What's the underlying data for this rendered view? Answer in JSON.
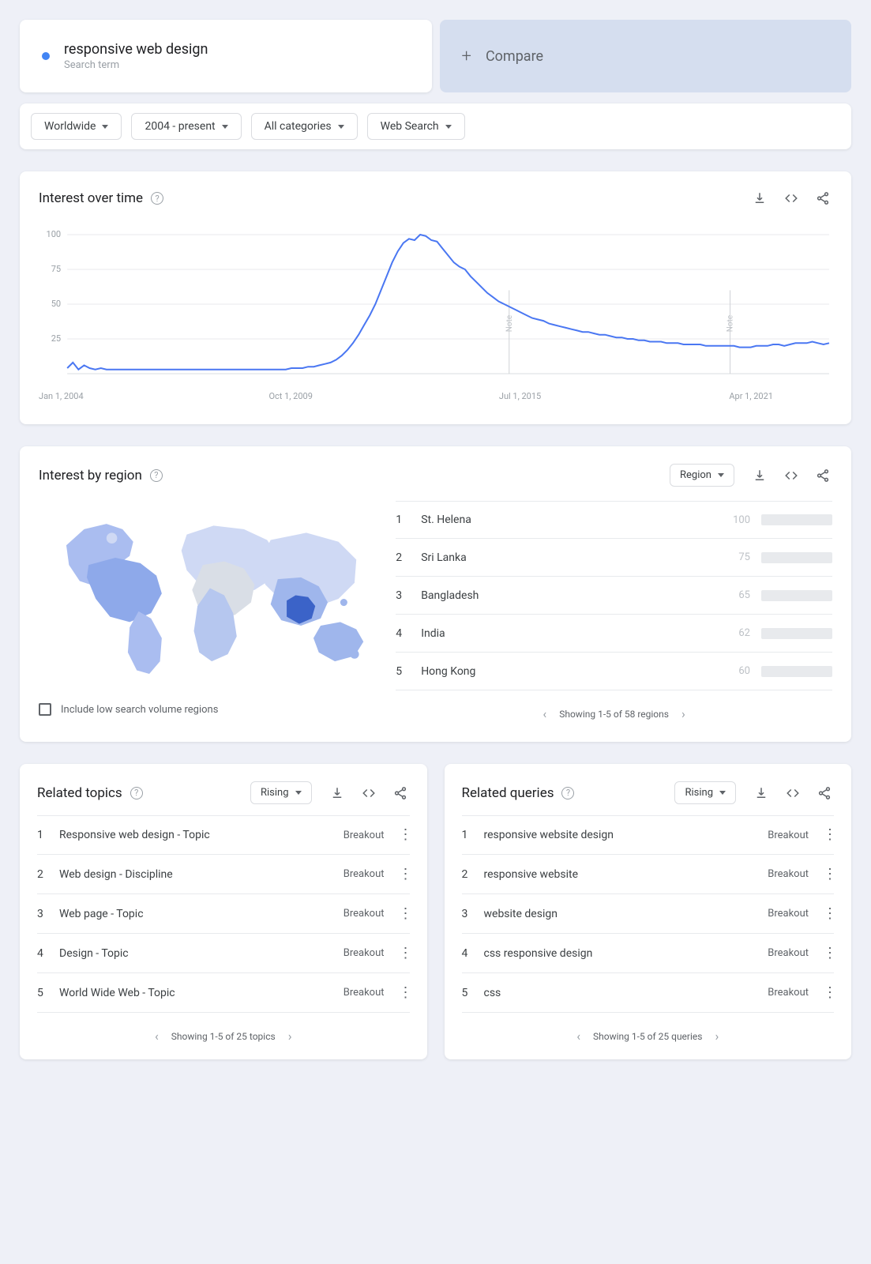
{
  "colors": {
    "accent": "#4285f4",
    "bar_track": "#e8eaed",
    "line": "#4a77f2",
    "grid": "#e8eaed",
    "page_bg": "#eef0f7",
    "text_muted": "#9aa0a6"
  },
  "search": {
    "term": "responsive web design",
    "subtitle": "Search term",
    "compare_label": "Compare"
  },
  "filters": {
    "geo": "Worldwide",
    "time": "2004 - present",
    "category": "All categories",
    "type": "Web Search"
  },
  "chart": {
    "title": "Interest over time",
    "y_ticks": [
      100,
      75,
      50,
      25
    ],
    "x_labels": [
      "Jan 1, 2004",
      "Oct 1, 2009",
      "Jul 1, 2015",
      "Apr 1, 2021"
    ],
    "x_label_positions_pct": [
      0,
      29,
      58,
      87
    ],
    "ylim": [
      0,
      100
    ],
    "note_positions_pct": [
      58,
      87
    ],
    "note_text": "Note",
    "series_color": "#4a77f2",
    "series": [
      4,
      8,
      3,
      6,
      4,
      3,
      4,
      3,
      3,
      3,
      3,
      3,
      3,
      3,
      3,
      3,
      3,
      3,
      3,
      3,
      3,
      3,
      3,
      3,
      3,
      3,
      3,
      3,
      3,
      3,
      3,
      3,
      3,
      3,
      3,
      3,
      3,
      3,
      3,
      3,
      4,
      4,
      4,
      5,
      5,
      6,
      7,
      8,
      10,
      13,
      17,
      22,
      28,
      35,
      42,
      50,
      60,
      70,
      80,
      88,
      94,
      97,
      96,
      100,
      99,
      96,
      95,
      90,
      85,
      80,
      77,
      75,
      70,
      66,
      62,
      58,
      55,
      52,
      50,
      48,
      46,
      44,
      42,
      40,
      39,
      38,
      36,
      35,
      34,
      33,
      32,
      31,
      30,
      30,
      29,
      28,
      28,
      27,
      26,
      26,
      25,
      25,
      24,
      24,
      23,
      23,
      23,
      22,
      22,
      22,
      21,
      21,
      21,
      21,
      20,
      20,
      20,
      20,
      20,
      20,
      19,
      19,
      19,
      20,
      20,
      20,
      21,
      21,
      20,
      21,
      22,
      22,
      22,
      23,
      22,
      21,
      22
    ]
  },
  "region": {
    "title": "Interest by region",
    "selector": "Region",
    "rows": [
      {
        "rank": 1,
        "name": "St. Helena",
        "value": 100
      },
      {
        "rank": 2,
        "name": "Sri Lanka",
        "value": 75
      },
      {
        "rank": 3,
        "name": "Bangladesh",
        "value": 65
      },
      {
        "rank": 4,
        "name": "India",
        "value": 62
      },
      {
        "rank": 5,
        "name": "Hong Kong",
        "value": 60
      }
    ],
    "pager": "Showing 1-5 of 58 regions",
    "checkbox_label": "Include low search volume regions"
  },
  "related_topics": {
    "title": "Related topics",
    "sort": "Rising",
    "rows": [
      {
        "rank": 1,
        "name": "Responsive web design - Topic",
        "value": "Breakout"
      },
      {
        "rank": 2,
        "name": "Web design - Discipline",
        "value": "Breakout"
      },
      {
        "rank": 3,
        "name": "Web page - Topic",
        "value": "Breakout"
      },
      {
        "rank": 4,
        "name": "Design - Topic",
        "value": "Breakout"
      },
      {
        "rank": 5,
        "name": "World Wide Web - Topic",
        "value": "Breakout"
      }
    ],
    "pager": "Showing 1-5 of 25 topics"
  },
  "related_queries": {
    "title": "Related queries",
    "sort": "Rising",
    "rows": [
      {
        "rank": 1,
        "name": "responsive website design",
        "value": "Breakout"
      },
      {
        "rank": 2,
        "name": "responsive website",
        "value": "Breakout"
      },
      {
        "rank": 3,
        "name": "website design",
        "value": "Breakout"
      },
      {
        "rank": 4,
        "name": "css responsive design",
        "value": "Breakout"
      },
      {
        "rank": 5,
        "name": "css",
        "value": "Breakout"
      }
    ],
    "pager": "Showing 1-5 of 25 queries"
  }
}
